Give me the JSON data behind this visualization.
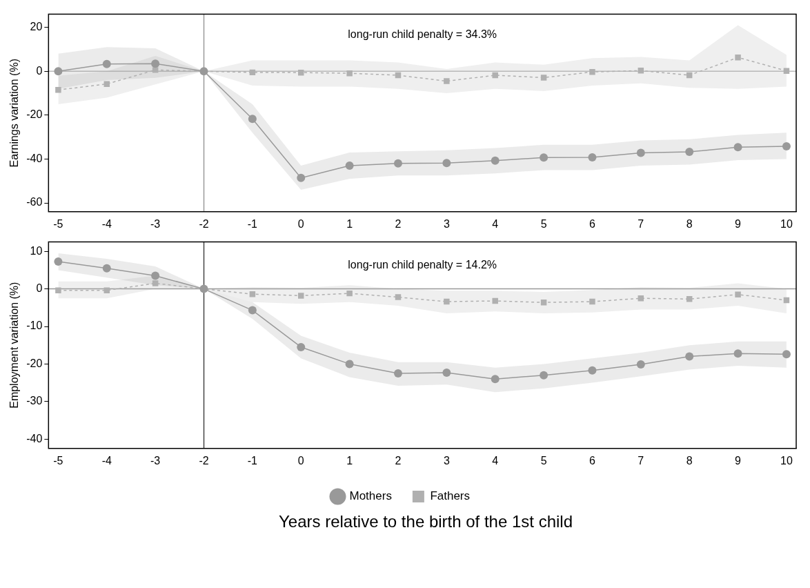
{
  "chart_data": [
    {
      "type": "line",
      "ylabel": "Earnings variation (%)",
      "annotations": [
        "long-run child penalty = 34.3%"
      ],
      "x": [
        -5,
        -4,
        -3,
        -2,
        -1,
        0,
        1,
        2,
        3,
        4,
        5,
        6,
        7,
        8,
        9,
        10
      ],
      "xlim": [
        -5.2,
        10.2
      ],
      "xticks": [
        -5,
        -4,
        -3,
        -2,
        -1,
        0,
        1,
        2,
        3,
        4,
        5,
        6,
        7,
        8,
        9,
        10
      ],
      "ylim": [
        -64,
        26
      ],
      "yticks": [
        -60,
        -40,
        -20,
        0,
        20
      ],
      "grid": false,
      "legend": false,
      "ref_lines": [
        {
          "axis": "y",
          "value": 0,
          "color": "#bbbbbb"
        },
        {
          "axis": "x",
          "value": -2,
          "color": "#999999"
        }
      ],
      "series": [
        {
          "color": "#999999",
          "marker": "circle",
          "line_style": "solid",
          "values": [
            0,
            3.3,
            3.5,
            0,
            -21.7,
            -48.6,
            -43,
            -42,
            -41.8,
            -40.7,
            -39.3,
            -39.2,
            -37.2,
            -36.7,
            -34.6,
            -34.2
          ],
          "lower": [
            -8,
            -4,
            -3,
            0,
            -28,
            -54,
            -49,
            -47.5,
            -47.5,
            -46.5,
            -45,
            -45,
            -43,
            -42.5,
            -40.5,
            -40
          ],
          "upper": [
            8,
            11,
            10.5,
            0,
            -15,
            -43,
            -37,
            -36.5,
            -36,
            -35,
            -33.5,
            -33.5,
            -31.5,
            -31,
            -29,
            -28
          ]
        },
        {
          "color": "#b0b0b0",
          "marker": "square",
          "line_style": "dashed",
          "values": [
            -8.5,
            -5.8,
            0.6,
            0,
            -0.5,
            -0.6,
            -0.9,
            -1.8,
            -4.5,
            -1.8,
            -2.9,
            -0.3,
            0.3,
            -1.8,
            6.3,
            0.2
          ],
          "lower": [
            -15,
            -12,
            -6,
            0,
            -6.5,
            -7,
            -7,
            -8,
            -10,
            -8,
            -9,
            -6.5,
            -5.5,
            -7.5,
            -8,
            -7
          ],
          "upper": [
            -2,
            0,
            7,
            0,
            5,
            5,
            5,
            4,
            1,
            4,
            3,
            6,
            6.5,
            5,
            21,
            7.5
          ]
        }
      ]
    },
    {
      "type": "line",
      "ylabel": "Employment variation (%)",
      "xlabel": "Years relative to the birth of the 1st child",
      "annotations": [
        "long-run child penalty = 14.2%"
      ],
      "x": [
        -5,
        -4,
        -3,
        -2,
        -1,
        0,
        1,
        2,
        3,
        4,
        5,
        6,
        7,
        8,
        9,
        10
      ],
      "xlim": [
        -5.2,
        10.2
      ],
      "xticks": [
        -5,
        -4,
        -3,
        -2,
        -1,
        0,
        1,
        2,
        3,
        4,
        5,
        6,
        7,
        8,
        9,
        10
      ],
      "ylim": [
        -42.5,
        12.5
      ],
      "yticks": [
        -40,
        -30,
        -20,
        -10,
        0,
        10
      ],
      "grid": false,
      "legend": "bottom",
      "ref_lines": [
        {
          "axis": "y",
          "value": 0,
          "color": "#999999"
        },
        {
          "axis": "x",
          "value": -2,
          "color": "#444444"
        }
      ],
      "series": [
        {
          "name": "Mothers",
          "color": "#999999",
          "marker": "circle",
          "line_style": "solid",
          "values": [
            7.3,
            5.5,
            3.5,
            0,
            -5.7,
            -15.5,
            -20,
            -22.5,
            -22.3,
            -24,
            -23,
            -21.7,
            -20.1,
            -18,
            -17.2,
            -17.4
          ],
          "lower": [
            5,
            3,
            1,
            0,
            -8,
            -18.5,
            -23.5,
            -25.8,
            -25.5,
            -27.5,
            -26.5,
            -25,
            -23.3,
            -21.5,
            -20.5,
            -21
          ],
          "upper": [
            9.5,
            8,
            6,
            0,
            -3.5,
            -12.5,
            -17,
            -19.5,
            -19.5,
            -21,
            -20,
            -18.5,
            -17,
            -15,
            -14,
            -14
          ]
        },
        {
          "name": "Fathers",
          "color": "#b0b0b0",
          "marker": "square",
          "line_style": "dashed",
          "values": [
            -0.4,
            -0.4,
            1.5,
            0,
            -1.4,
            -1.8,
            -1.2,
            -2.2,
            -3.4,
            -3.2,
            -3.6,
            -3.4,
            -2.5,
            -2.7,
            -1.5,
            -3
          ],
          "lower": [
            -2.5,
            -2.5,
            0,
            0,
            -3.5,
            -4,
            -3.5,
            -4.5,
            -6.5,
            -6,
            -6.5,
            -6.3,
            -5.5,
            -5.5,
            -4.5,
            -6.5
          ],
          "upper": [
            2,
            2,
            3.5,
            0,
            0.5,
            0.3,
            1,
            0,
            -0.5,
            -0.5,
            -0.8,
            -0.3,
            0.5,
            0.3,
            1.5,
            0
          ]
        }
      ]
    }
  ]
}
